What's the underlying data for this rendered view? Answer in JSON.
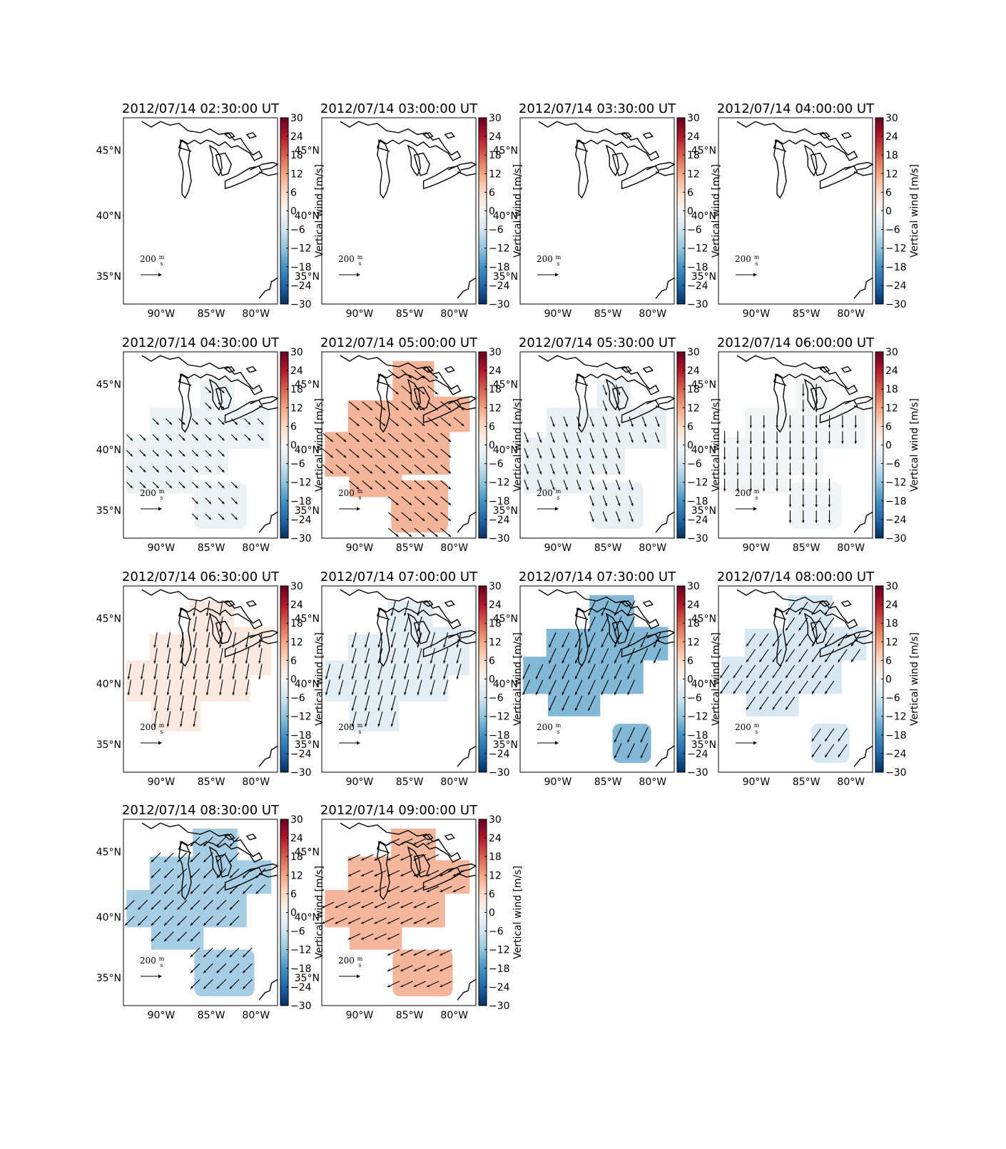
{
  "chart_data": {
    "type": "map-grid",
    "colorbar": {
      "label": "Vertical wind [m/s]",
      "ticks": [
        "30",
        "24",
        "18",
        "12",
        "6",
        "0",
        "−6",
        "−12",
        "−18",
        "−24",
        "−30"
      ],
      "range": [
        -30,
        30
      ]
    },
    "lon_ticks": [
      "90°W",
      "85°W",
      "80°W"
    ],
    "lat_ticks": [
      "45°N",
      "40°N",
      "35°N"
    ],
    "scale_arrow": {
      "value": "200",
      "unit_num": "m",
      "unit_den": "s"
    },
    "panels": [
      {
        "title": "2012/07/14 02:30:00 UT",
        "shape": "none",
        "fill": "#ffffff",
        "wind_dir": 0,
        "wind_len": 0
      },
      {
        "title": "2012/07/14 03:00:00 UT",
        "shape": "none",
        "fill": "#ffffff",
        "wind_dir": 0,
        "wind_len": 0
      },
      {
        "title": "2012/07/14 03:30:00 UT",
        "shape": "none",
        "fill": "#ffffff",
        "wind_dir": 0,
        "wind_len": 0
      },
      {
        "title": "2012/07/14 04:00:00 UT",
        "shape": "none",
        "fill": "#ffffff",
        "wind_dir": 0,
        "wind_len": 0
      },
      {
        "title": "2012/07/14 04:30:00 UT",
        "shape": "A",
        "fill": "#ecf3f5",
        "wind_dir": 135,
        "wind_len": 0.55
      },
      {
        "title": "2012/07/14 05:00:00 UT",
        "shape": "B",
        "fill": "#f4b49a",
        "wind_dir": 130,
        "wind_len": 0.85
      },
      {
        "title": "2012/07/14 05:30:00 UT",
        "shape": "A",
        "fill": "#e8f0f4",
        "wind_dir": 160,
        "wind_len": 0.7
      },
      {
        "title": "2012/07/14 06:00:00 UT",
        "shape": "A",
        "fill": "#f2f5f6",
        "wind_dir": 180,
        "wind_len": 0.8
      },
      {
        "title": "2012/07/14 06:30:00 UT",
        "shape": "C",
        "fill": "#fbe9e0",
        "wind_dir": 190,
        "wind_len": 1.0
      },
      {
        "title": "2012/07/14 07:00:00 UT",
        "shape": "C",
        "fill": "#e3edf4",
        "wind_dir": 195,
        "wind_len": 1.0
      },
      {
        "title": "2012/07/14 07:30:00 UT",
        "shape": "D",
        "fill": "#82b8d6",
        "wind_dir": 205,
        "wind_len": 1.05
      },
      {
        "title": "2012/07/14 08:00:00 UT",
        "shape": "D",
        "fill": "#d8e8f2",
        "wind_dir": 215,
        "wind_len": 1.0
      },
      {
        "title": "2012/07/14 08:30:00 UT",
        "shape": "E",
        "fill": "#a6cde3",
        "wind_dir": 225,
        "wind_len": 0.85
      },
      {
        "title": "2012/07/14 09:00:00 UT",
        "shape": "E",
        "fill": "#f4b69c",
        "wind_dir": 245,
        "wind_len": 0.85
      }
    ]
  }
}
